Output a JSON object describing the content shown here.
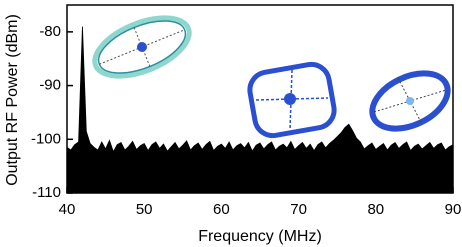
{
  "chart_data": {
    "type": "area",
    "xlabel": "Frequency (MHz)",
    "ylabel": "Output RF Power (dBm)",
    "color": "#000000",
    "xlim": [
      40,
      90
    ],
    "xticks": [
      40,
      50,
      60,
      70,
      80,
      90
    ],
    "ylim": [
      -110,
      -75
    ],
    "yticks": [
      -110,
      -100,
      -90,
      -80
    ],
    "x": [
      40,
      40.5,
      41,
      41.5,
      42,
      42.5,
      43,
      43.5,
      44,
      44.5,
      45,
      45.5,
      46,
      46.5,
      47,
      47.5,
      48,
      48.5,
      49,
      49.5,
      50,
      50.5,
      51,
      51.5,
      52,
      52.5,
      53,
      53.5,
      54,
      54.5,
      55,
      55.5,
      56,
      56.5,
      57,
      57.5,
      58,
      58.5,
      59,
      59.5,
      60,
      60.5,
      61,
      61.5,
      62,
      62.5,
      63,
      63.5,
      64,
      64.5,
      65,
      65.5,
      66,
      66.5,
      67,
      67.5,
      68,
      68.5,
      69,
      69.5,
      70,
      70.5,
      71,
      71.5,
      72,
      72.5,
      73,
      73.5,
      74,
      74.5,
      75,
      75.5,
      76,
      76.5,
      77,
      77.5,
      78,
      78.5,
      79,
      79.5,
      80,
      80.5,
      81,
      81.5,
      82,
      82.5,
      83,
      83.5,
      84,
      84.5,
      85,
      85.5,
      86,
      86.5,
      87,
      87.5,
      88,
      88.5,
      89,
      89.5,
      90
    ],
    "values": [
      -101.5,
      -102,
      -101,
      -100.5,
      -79,
      -98.5,
      -100.8,
      -101.5,
      -102,
      -100.5,
      -101.8,
      -100.2,
      -102.3,
      -101,
      -100.6,
      -102,
      -101.3,
      -100.4,
      -101.9,
      -101.2,
      -100.8,
      -102.1,
      -101,
      -100.5,
      -101.7,
      -100.9,
      -102.2,
      -101.4,
      -100.6,
      -101.8,
      -101.1,
      -100.3,
      -102,
      -101.2,
      -100.7,
      -101.9,
      -101,
      -100.4,
      -102.1,
      -101.3,
      -100.9,
      -101.7,
      -100.5,
      -102,
      -101.2,
      -100.8,
      -101.6,
      -100.6,
      -102.2,
      -101.1,
      -100.7,
      -101.8,
      -101,
      -100.5,
      -102,
      -101.3,
      -100.9,
      -101.6,
      -100.4,
      -101.9,
      -101.2,
      -100.6,
      -101.7,
      -100.9,
      -102.1,
      -101,
      -100.5,
      -101.6,
      -100.8,
      -100.2,
      -99.5,
      -98.8,
      -97.8,
      -97.2,
      -98.4,
      -99.8,
      -100.5,
      -101.8,
      -101.2,
      -100.7,
      -101.9,
      -101.3,
      -100.8,
      -102,
      -101.1,
      -100.6,
      -101.7,
      -101,
      -100.5,
      -102.1,
      -101.3,
      -100.9,
      -101.8,
      -101.2,
      -100.6,
      -101.7,
      -101,
      -100.7,
      -102,
      -101.4,
      -101
    ]
  }
}
